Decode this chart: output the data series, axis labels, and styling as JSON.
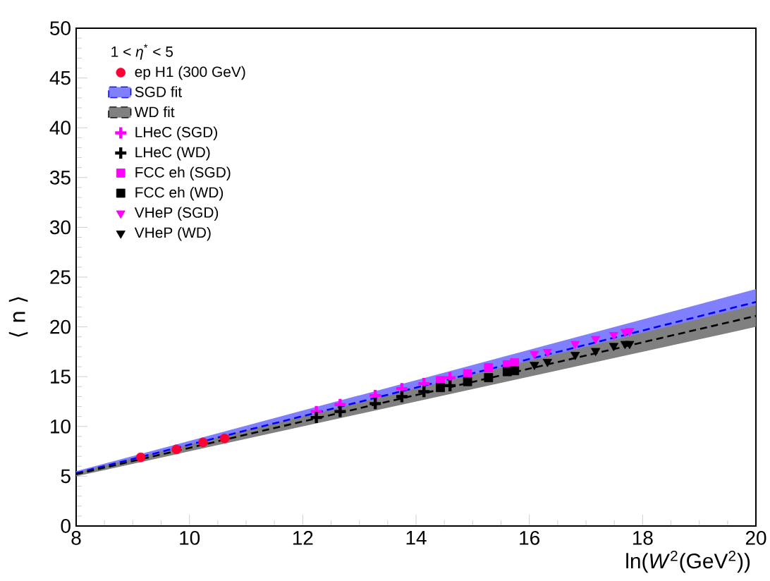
{
  "chart_data": {
    "type": "scatter",
    "xlabel": "ln(*W*$^{2}$(GeV$^{2}$))",
    "ylabel": "⟨ n ⟩",
    "legend_title": "1 < *η*$^{*}$ < 5",
    "xlim": [
      8,
      20
    ],
    "ylim": [
      0,
      50
    ],
    "xticks": [
      8,
      10,
      12,
      14,
      16,
      18,
      20
    ],
    "yticks": [
      0,
      5,
      10,
      15,
      20,
      25,
      30,
      35,
      40,
      45,
      50
    ],
    "grid": false,
    "legend": "top left",
    "series": [
      {
        "name": "ep H1 (300 GeV)",
        "marker": "circle",
        "color": "#ff0033",
        "x": [
          9.14,
          9.77,
          10.24,
          10.62
        ],
        "values": [
          6.9,
          7.7,
          8.4,
          8.8
        ]
      },
      {
        "name": "SGD fit",
        "type": "line",
        "line_style": "dashed",
        "color": "#0000ff",
        "x": [
          8,
          20
        ],
        "values": [
          5.3,
          22.5
        ],
        "lower": [
          5.1,
          21.6
        ],
        "upper": [
          5.5,
          23.8
        ]
      },
      {
        "name": "WD fit",
        "type": "line",
        "line_style": "dashed",
        "color": "#000000",
        "x": [
          8,
          20
        ],
        "values": [
          5.2,
          21.1
        ],
        "lower": [
          5.0,
          20.0
        ],
        "upper": [
          5.4,
          22.2
        ]
      },
      {
        "name": "LHeC (SGD)",
        "marker": "cross",
        "color": "#ff00ff",
        "x": [
          12.24,
          12.66,
          13.28,
          13.75,
          14.14,
          14.6
        ],
        "values": [
          11.5,
          12.2,
          13.1,
          13.8,
          14.3,
          14.9
        ]
      },
      {
        "name": "LHeC (WD)",
        "marker": "cross",
        "color": "#000000",
        "x": [
          12.24,
          12.66,
          13.28,
          13.75,
          14.14,
          14.6
        ],
        "values": [
          10.9,
          11.5,
          12.3,
          13.0,
          13.5,
          14.1
        ]
      },
      {
        "name": "FCC eh (SGD)",
        "marker": "square",
        "color": "#ff00ff",
        "x": [
          14.43,
          14.91,
          15.28,
          15.61,
          15.74
        ],
        "values": [
          14.6,
          15.3,
          15.9,
          16.2,
          16.4
        ]
      },
      {
        "name": "FCC eh (WD)",
        "marker": "square",
        "color": "#000000",
        "x": [
          14.43,
          14.91,
          15.28,
          15.61,
          15.74
        ],
        "values": [
          13.9,
          14.5,
          14.9,
          15.5,
          15.6
        ]
      },
      {
        "name": "VHeP (SGD)",
        "marker": "triangle",
        "color": "#ff00ff",
        "x": [
          16.09,
          16.32,
          16.81,
          17.17,
          17.49,
          17.69,
          17.77
        ],
        "values": [
          17.3,
          17.5,
          18.3,
          18.8,
          19.2,
          19.5,
          19.6
        ]
      },
      {
        "name": "VHeP (WD)",
        "marker": "triangle",
        "color": "#000000",
        "x": [
          16.09,
          16.32,
          16.81,
          17.17,
          17.49,
          17.69,
          17.77
        ],
        "values": [
          16.2,
          16.5,
          17.2,
          17.6,
          18.1,
          18.3,
          18.3
        ]
      }
    ]
  }
}
